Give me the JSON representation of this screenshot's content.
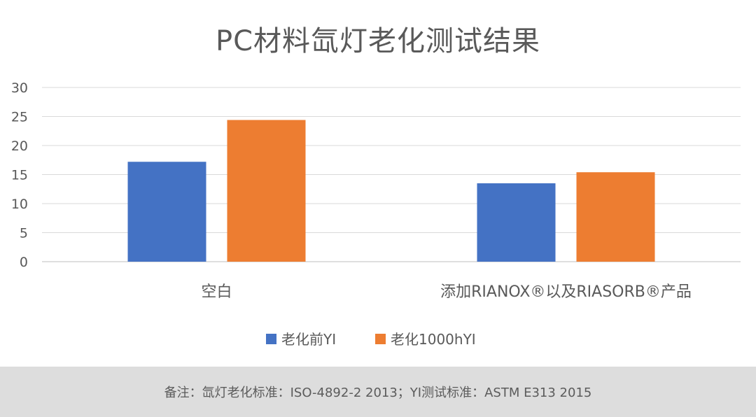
{
  "chart_data": {
    "type": "bar",
    "title": "PC材料氙灯老化测试结果",
    "categories": [
      "空白",
      "添加RIANOX®以及RIASORB®产品"
    ],
    "series": [
      {
        "name": "老化前YI",
        "values": [
          17.2,
          13.5
        ],
        "color": "#4472c4"
      },
      {
        "name": "老化1000hYI",
        "values": [
          24.4,
          15.4
        ],
        "color": "#ed7d31"
      }
    ],
    "y_ticks": [
      "0",
      "5",
      "10",
      "15",
      "20",
      "25",
      "30"
    ],
    "ylim": [
      0,
      30
    ],
    "grid": true,
    "legend_position": "bottom"
  },
  "footer": {
    "note": "备注：氙灯老化标准：ISO-4892-2 2013；YI测试标准：ASTM E313 2015"
  }
}
